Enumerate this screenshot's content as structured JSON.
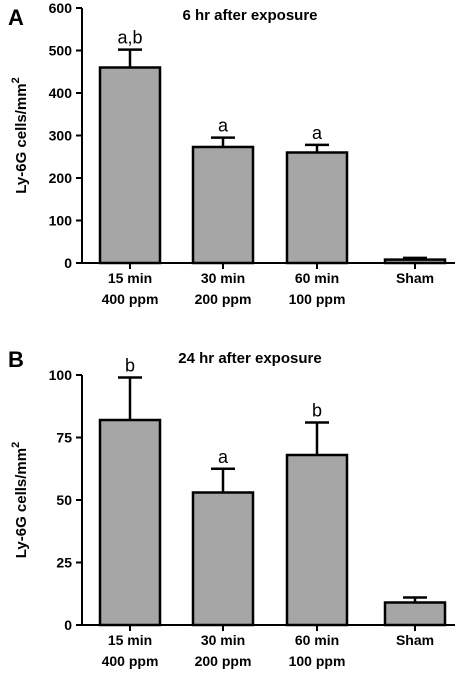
{
  "figure_bg": "#ffffff",
  "bar_color": "#a6a6a6",
  "axis_color": "#000000",
  "chart_data": [
    {
      "panel": "A",
      "type": "bar",
      "title": "6 hr after exposure",
      "ylabel": "Ly-6G cells/mm",
      "ylabel_sup": "2",
      "ylim": [
        0,
        600
      ],
      "yticks": [
        0,
        100,
        200,
        300,
        400,
        500,
        600
      ],
      "categories": [
        [
          "15 min",
          "400 ppm"
        ],
        [
          "30 min",
          "200 ppm"
        ],
        [
          "60 min",
          "100 ppm"
        ],
        [
          "Sham"
        ]
      ],
      "values": [
        460,
        273,
        260,
        8
      ],
      "errors": [
        42,
        22,
        18,
        4
      ],
      "annotations": [
        "a,b",
        "a",
        "a",
        ""
      ],
      "grid": false
    },
    {
      "panel": "B",
      "type": "bar",
      "title": "24 hr after exposure",
      "ylabel": "Ly-6G cells/mm",
      "ylabel_sup": "2",
      "ylim": [
        0,
        100
      ],
      "yticks": [
        0,
        25,
        50,
        75,
        100
      ],
      "categories": [
        [
          "15 min",
          "400 ppm"
        ],
        [
          "30 min",
          "200 ppm"
        ],
        [
          "60 min",
          "100 ppm"
        ],
        [
          "Sham"
        ]
      ],
      "values": [
        82,
        53,
        68,
        9
      ],
      "errors": [
        17,
        9.5,
        13,
        2
      ],
      "annotations": [
        "b",
        "a",
        "b",
        ""
      ],
      "grid": false
    }
  ]
}
